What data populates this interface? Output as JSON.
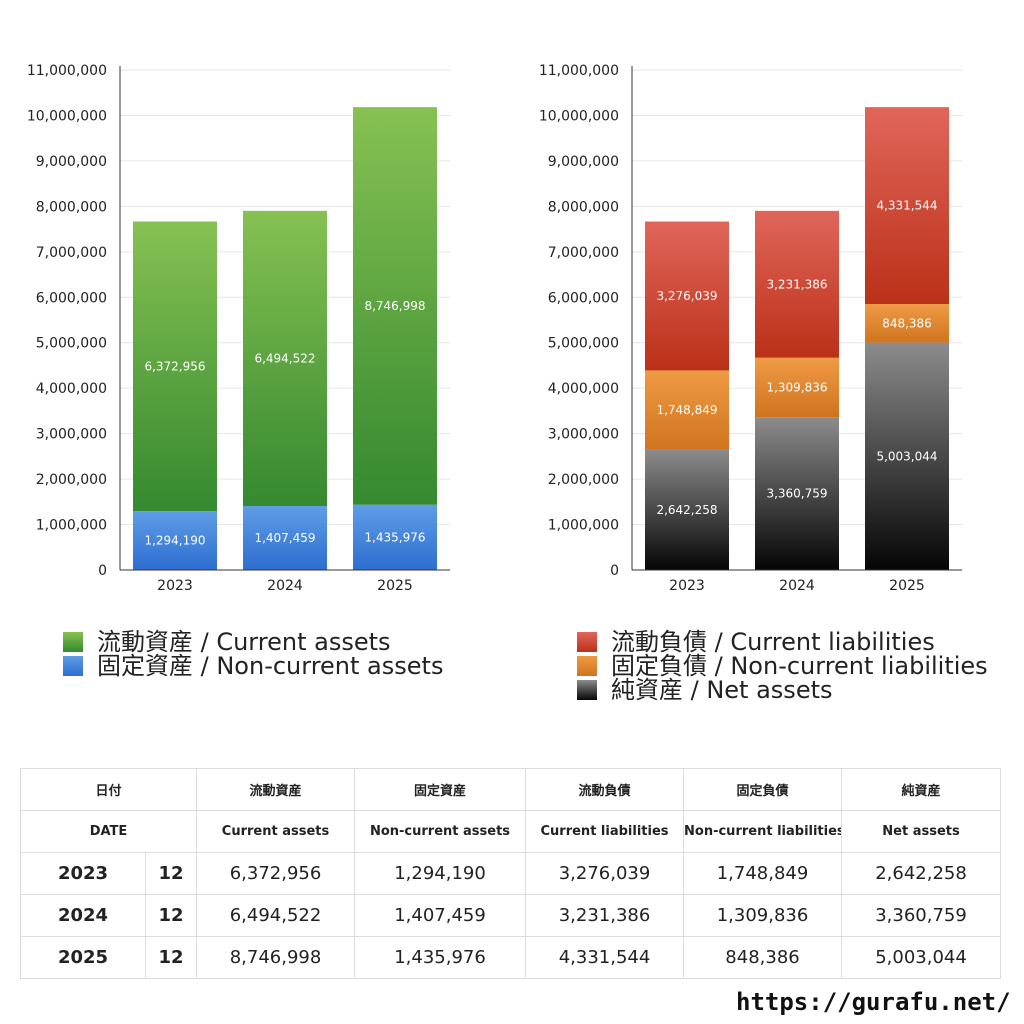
{
  "colors": {
    "current_assets": [
      "#86c152",
      "#358930"
    ],
    "non_current_assets": [
      "#5f9de6",
      "#2d6ed0"
    ],
    "current_liabilities": [
      "#e0665a",
      "#bb3018"
    ],
    "non_current_liabilities": [
      "#ef9a45",
      "#d0741e"
    ],
    "net_assets": [
      "#8c8c8c",
      "#050505"
    ],
    "grid": "#e6e6e6",
    "axis": "#333333"
  },
  "chart_data": [
    {
      "type": "bar",
      "stacked": true,
      "categories": [
        "2023",
        "2024",
        "2025"
      ],
      "ylim": [
        0,
        11000000
      ],
      "yticks": [
        "0",
        "1,000,000",
        "2,000,000",
        "3,000,000",
        "4,000,000",
        "5,000,000",
        "6,000,000",
        "7,000,000",
        "8,000,000",
        "9,000,000",
        "10,000,000",
        "11,000,000"
      ],
      "grid": true,
      "legend_position": "bottom",
      "series": [
        {
          "name": "固定資産 / Non-current assets",
          "color_key": "non_current_assets",
          "values": [
            1294190,
            1407459,
            1435976
          ],
          "labels": [
            "1,294,190",
            "1,407,459",
            "1,435,976"
          ]
        },
        {
          "name": "流動資産 / Current assets",
          "color_key": "current_assets",
          "values": [
            6372956,
            6494522,
            8746998
          ],
          "labels": [
            "6,372,956",
            "6,494,522",
            "8,746,998"
          ]
        }
      ],
      "legend": [
        {
          "label": "流動資産 / Current assets",
          "color_key": "current_assets"
        },
        {
          "label": "固定資産 / Non-current assets",
          "color_key": "non_current_assets"
        }
      ]
    },
    {
      "type": "bar",
      "stacked": true,
      "categories": [
        "2023",
        "2024",
        "2025"
      ],
      "ylim": [
        0,
        11000000
      ],
      "yticks": [
        "0",
        "1,000,000",
        "2,000,000",
        "3,000,000",
        "4,000,000",
        "5,000,000",
        "6,000,000",
        "7,000,000",
        "8,000,000",
        "9,000,000",
        "10,000,000",
        "11,000,000"
      ],
      "grid": true,
      "legend_position": "bottom",
      "series": [
        {
          "name": "純資産 / Net assets",
          "color_key": "net_assets",
          "values": [
            2642258,
            3360759,
            5003044
          ],
          "labels": [
            "2,642,258",
            "3,360,759",
            "5,003,044"
          ]
        },
        {
          "name": "固定負債 / Non-current liabilities",
          "color_key": "non_current_liabilities",
          "values": [
            1748849,
            1309836,
            848386
          ],
          "labels": [
            "1,748,849",
            "1,309,836",
            "848,386"
          ]
        },
        {
          "name": "流動負債 / Current liabilities",
          "color_key": "current_liabilities",
          "values": [
            3276039,
            3231386,
            4331544
          ],
          "labels": [
            "3,276,039",
            "3,231,386",
            "4,331,544"
          ]
        }
      ],
      "legend": [
        {
          "label": "流動負債 / Current liabilities",
          "color_key": "current_liabilities"
        },
        {
          "label": "固定負債 / Non-current liabilities",
          "color_key": "non_current_liabilities"
        },
        {
          "label": "純資産 / Net assets",
          "color_key": "net_assets"
        }
      ]
    }
  ],
  "table": {
    "header_jp": [
      "日付",
      "流動資産",
      "固定資産",
      "流動負債",
      "固定負債",
      "純資産"
    ],
    "header_en": [
      "DATE",
      "Current assets",
      "Non-current assets",
      "Current liabilities",
      "Non-current liabilities",
      "Net assets"
    ],
    "rows": [
      {
        "year": "2023",
        "month": "12",
        "values": [
          "6,372,956",
          "1,294,190",
          "3,276,039",
          "1,748,849",
          "2,642,258"
        ]
      },
      {
        "year": "2024",
        "month": "12",
        "values": [
          "6,494,522",
          "1,407,459",
          "3,231,386",
          "1,309,836",
          "3,360,759"
        ]
      },
      {
        "year": "2025",
        "month": "12",
        "values": [
          "8,746,998",
          "1,435,976",
          "4,331,544",
          "848,386",
          "5,003,044"
        ]
      }
    ]
  },
  "footer": {
    "url": "https://gurafu.net/"
  }
}
